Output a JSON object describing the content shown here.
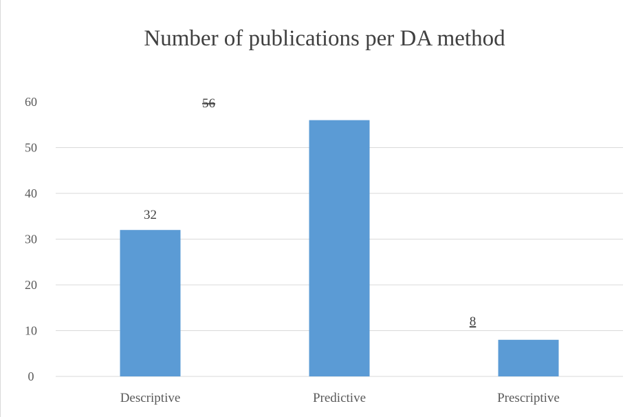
{
  "chart_data": {
    "type": "bar",
    "title": "Number of publications per DA method",
    "xlabel": "",
    "ylabel": "",
    "categories": [
      "Descriptive",
      "Predictive",
      "Prescriptive"
    ],
    "values": [
      32,
      56,
      8
    ],
    "ylim": [
      0,
      60
    ],
    "yticks": [
      0,
      10,
      20,
      30,
      40,
      50,
      60
    ],
    "data_labels": [
      {
        "text": "32",
        "category": "Descriptive",
        "value": 32
      },
      {
        "text": "56",
        "category": "Predictive",
        "value": 56,
        "displaced": true
      },
      {
        "text": "8",
        "category": "Prescriptive",
        "value": 8,
        "displaced": true
      }
    ],
    "grid": true,
    "legend": "none",
    "bar_color": "#5b9bd5",
    "grid_color": "#d9d9d9"
  }
}
